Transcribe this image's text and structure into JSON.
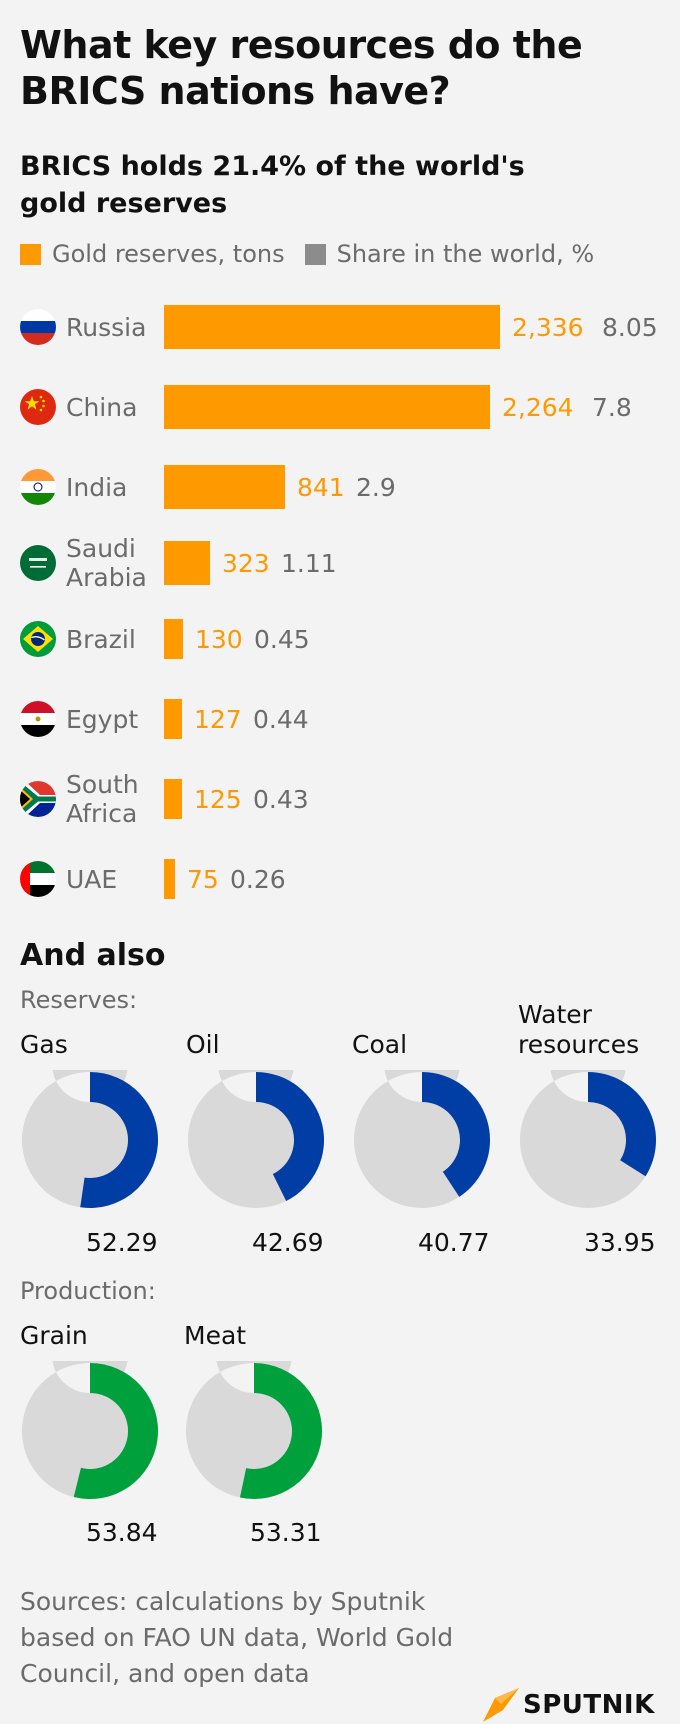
{
  "title": "What key resources do the BRICS nations have?",
  "subtitle": "BRICS holds 21.4% of the world's gold reserves",
  "legend": {
    "gold_label": "Gold reserves, tons",
    "share_label": "Share in the world, %"
  },
  "colors": {
    "gold": "#ff9900",
    "share": "#8c8c8c",
    "reserves": "#003da5",
    "production": "#00a03c",
    "donut_rest": "#d9d9d9"
  },
  "chart_data": [
    {
      "type": "bar",
      "orientation": "horizontal",
      "categories": [
        "Russia",
        "China",
        "India",
        "Saudi Arabia",
        "Brazil",
        "Egypt",
        "South Africa",
        "UAE"
      ],
      "series": [
        {
          "name": "Gold reserves, tons",
          "values": [
            2336,
            2264,
            841,
            323,
            130,
            127,
            125,
            75
          ]
        },
        {
          "name": "Share in the world, %",
          "values": [
            8.05,
            7.8,
            2.9,
            1.11,
            0.45,
            0.44,
            0.43,
            0.26
          ]
        }
      ],
      "value_labels": [
        "2,336",
        "2,264",
        "841",
        "323",
        "130",
        "127",
        "125",
        "75"
      ],
      "share_labels": [
        "8.05",
        "7.8",
        "2.9",
        "1.11",
        "0.45",
        "0.44",
        "0.43",
        "0.26"
      ],
      "flags": [
        "russia-flag-icon",
        "china-flag-icon",
        "india-flag-icon",
        "saudi-arabia-flag-icon",
        "brazil-flag-icon",
        "egypt-flag-icon",
        "south-africa-flag-icon",
        "uae-flag-icon"
      ]
    },
    {
      "type": "pie",
      "variant": "donut",
      "group": "Reserves:",
      "categories": [
        "Gas",
        "Oil",
        "Coal",
        "Water resources"
      ],
      "values": [
        52.29,
        42.69,
        40.77,
        33.95
      ],
      "value_labels": [
        "52.29",
        "42.69",
        "40.77",
        "33.95"
      ]
    },
    {
      "type": "pie",
      "variant": "donut",
      "group": "Production:",
      "categories": [
        "Grain",
        "Meat"
      ],
      "values": [
        53.84,
        53.31
      ],
      "value_labels": [
        "53.84",
        "53.31"
      ]
    }
  ],
  "also": {
    "title": "And also",
    "reserves_label": "Reserves:",
    "production_label": "Production:"
  },
  "sources": "Sources: calculations by Sputnik based on FAO UN data, World Gold Council, and open data",
  "logo": {
    "text": "SPUTNIK"
  }
}
